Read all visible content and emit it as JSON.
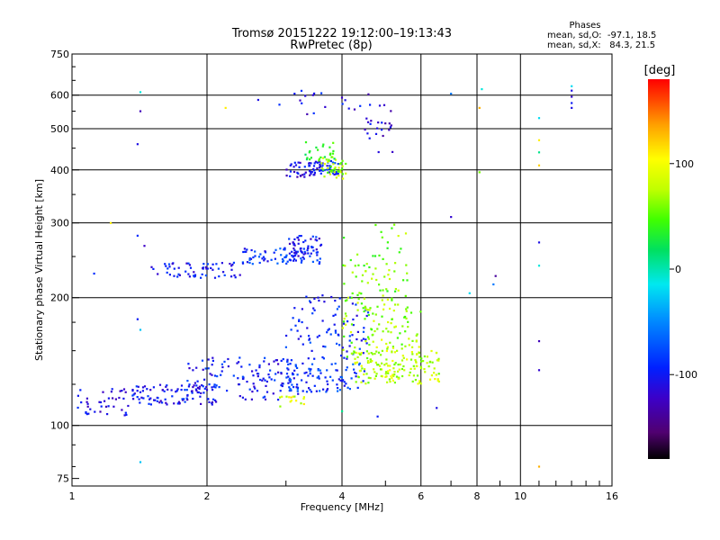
{
  "chart_data": {
    "type": "scatter",
    "title": "Tromsø 20151222 19:12:00–19:13:43",
    "subtitle": "RwPretec (8p)",
    "xlabel": "Frequency [MHz]",
    "ylabel": "Stationary phase Virtual Height [km]",
    "x_scale": "log2",
    "y_scale": "log",
    "xlim": [
      1,
      16
    ],
    "ylim": [
      72,
      750
    ],
    "x_ticks": [
      {
        "value": 1,
        "label": "1"
      },
      {
        "value": 2,
        "label": "2"
      },
      {
        "value": 4,
        "label": "4"
      },
      {
        "value": 6,
        "label": "6"
      },
      {
        "value": 8,
        "label": "8"
      },
      {
        "value": 10,
        "label": "10"
      },
      {
        "value": 16,
        "label": "16"
      }
    ],
    "y_ticks": [
      {
        "value": 75,
        "label": "75"
      },
      {
        "value": 100,
        "label": "100"
      },
      {
        "value": 200,
        "label": "200"
      },
      {
        "value": 300,
        "label": "300"
      },
      {
        "value": 400,
        "label": "400"
      },
      {
        "value": 500,
        "label": "500"
      },
      {
        "value": 600,
        "label": "600"
      },
      {
        "value": 750,
        "label": "750"
      }
    ],
    "grid": true,
    "legend": {
      "title": "Phases",
      "line1": "mean, sd,O:  -97.1, 18.5",
      "line2": "mean, sd,X:   84.3, 21.5",
      "placement": "top-right"
    },
    "colorbar": {
      "label": "[deg]",
      "range": [
        -180,
        180
      ],
      "ticks": [
        {
          "value": 100,
          "label": "100"
        },
        {
          "value": 0,
          "label": "0"
        },
        {
          "value": -100,
          "label": "-100"
        }
      ]
    },
    "clusters": [
      {
        "f": [
          1.0,
          1.35
        ],
        "h": [
          105,
          122
        ],
        "phase": -110,
        "n": 40
      },
      {
        "f": [
          1.35,
          2.1
        ],
        "h": [
          112,
          125
        ],
        "phase": -105,
        "n": 90
      },
      {
        "f": [
          1.8,
          3.2
        ],
        "h": [
          115,
          145
        ],
        "phase": -100,
        "n": 130
      },
      {
        "f": [
          3.0,
          4.5
        ],
        "h": [
          120,
          140
        ],
        "phase": -85,
        "n": 90
      },
      {
        "f": [
          3.0,
          4.6
        ],
        "h": [
          140,
          205
        ],
        "phase": -95,
        "n": 90
      },
      {
        "f": [
          4.2,
          6.6
        ],
        "h": [
          125,
          150
        ],
        "phase": 80,
        "n": 160
      },
      {
        "f": [
          4.0,
          6.0
        ],
        "h": [
          145,
          200
        ],
        "phase": 70,
        "n": 100
      },
      {
        "f": [
          2.9,
          3.3
        ],
        "h": [
          110,
          118
        ],
        "phase": 90,
        "n": 15
      },
      {
        "f": [
          1.5,
          2.4
        ],
        "h": [
          222,
          242
        ],
        "phase": -100,
        "n": 60
      },
      {
        "f": [
          2.4,
          3.6
        ],
        "h": [
          240,
          262
        ],
        "phase": -90,
        "n": 80
      },
      {
        "f": [
          3.0,
          3.6
        ],
        "h": [
          250,
          280
        ],
        "phase": -105,
        "n": 45
      },
      {
        "f": [
          4.0,
          5.6
        ],
        "h": [
          185,
          300
        ],
        "phase": 60,
        "n": 70
      },
      {
        "f": [
          3.0,
          3.6
        ],
        "h": [
          385,
          420
        ],
        "phase": -110,
        "n": 50
      },
      {
        "f": [
          3.5,
          3.95
        ],
        "h": [
          390,
          420
        ],
        "phase": -95,
        "n": 30
      },
      {
        "f": [
          3.6,
          4.1
        ],
        "h": [
          380,
          430
        ],
        "phase": 70,
        "n": 40
      },
      {
        "f": [
          3.3,
          3.9
        ],
        "h": [
          420,
          470
        ],
        "phase": 40,
        "n": 25
      },
      {
        "f": [
          4.5,
          5.2
        ],
        "h": [
          440,
          540
        ],
        "phase": -120,
        "n": 20
      },
      {
        "f": [
          3.0,
          5.2
        ],
        "h": [
          540,
          620
        ],
        "phase": -110,
        "n": 22
      }
    ],
    "isolated_points": [
      {
        "f": 1.42,
        "h": 610,
        "phase": -10
      },
      {
        "f": 1.42,
        "h": 550,
        "phase": -130
      },
      {
        "f": 1.4,
        "h": 460,
        "phase": -110
      },
      {
        "f": 1.22,
        "h": 300,
        "phase": 110
      },
      {
        "f": 1.4,
        "h": 280,
        "phase": -90
      },
      {
        "f": 1.45,
        "h": 265,
        "phase": -125
      },
      {
        "f": 1.12,
        "h": 228,
        "phase": -90
      },
      {
        "f": 1.4,
        "h": 178,
        "phase": -100
      },
      {
        "f": 1.42,
        "h": 168,
        "phase": -30
      },
      {
        "f": 1.42,
        "h": 82,
        "phase": -30
      },
      {
        "f": 2.2,
        "h": 560,
        "phase": 110
      },
      {
        "f": 2.6,
        "h": 585,
        "phase": -110
      },
      {
        "f": 2.9,
        "h": 570,
        "phase": -90
      },
      {
        "f": 7.0,
        "h": 605,
        "phase": -60
      },
      {
        "f": 7.0,
        "h": 310,
        "phase": -120
      },
      {
        "f": 6.5,
        "h": 110,
        "phase": -110
      },
      {
        "f": 4.8,
        "h": 105,
        "phase": -100
      },
      {
        "f": 4.0,
        "h": 108,
        "phase": 10
      },
      {
        "f": 8.2,
        "h": 620,
        "phase": -10
      },
      {
        "f": 8.1,
        "h": 560,
        "phase": 130
      },
      {
        "f": 8.1,
        "h": 395,
        "phase": 60
      },
      {
        "f": 8.8,
        "h": 225,
        "phase": -140
      },
      {
        "f": 8.7,
        "h": 215,
        "phase": -60
      },
      {
        "f": 7.7,
        "h": 205,
        "phase": -20
      },
      {
        "f": 11.0,
        "h": 530,
        "phase": -20
      },
      {
        "f": 11.0,
        "h": 470,
        "phase": 110
      },
      {
        "f": 11.0,
        "h": 440,
        "phase": 10
      },
      {
        "f": 11.0,
        "h": 410,
        "phase": 120
      },
      {
        "f": 11.0,
        "h": 270,
        "phase": -110
      },
      {
        "f": 11.0,
        "h": 238,
        "phase": -10
      },
      {
        "f": 11.0,
        "h": 158,
        "phase": -130
      },
      {
        "f": 11.0,
        "h": 135,
        "phase": -120
      },
      {
        "f": 11.0,
        "h": 80,
        "phase": 130
      },
      {
        "f": 13.0,
        "h": 630,
        "phase": -20
      },
      {
        "f": 13.0,
        "h": 615,
        "phase": -110
      },
      {
        "f": 13.0,
        "h": 595,
        "phase": -120
      },
      {
        "f": 13.0,
        "h": 575,
        "phase": -100
      },
      {
        "f": 13.0,
        "h": 560,
        "phase": -110
      }
    ]
  }
}
